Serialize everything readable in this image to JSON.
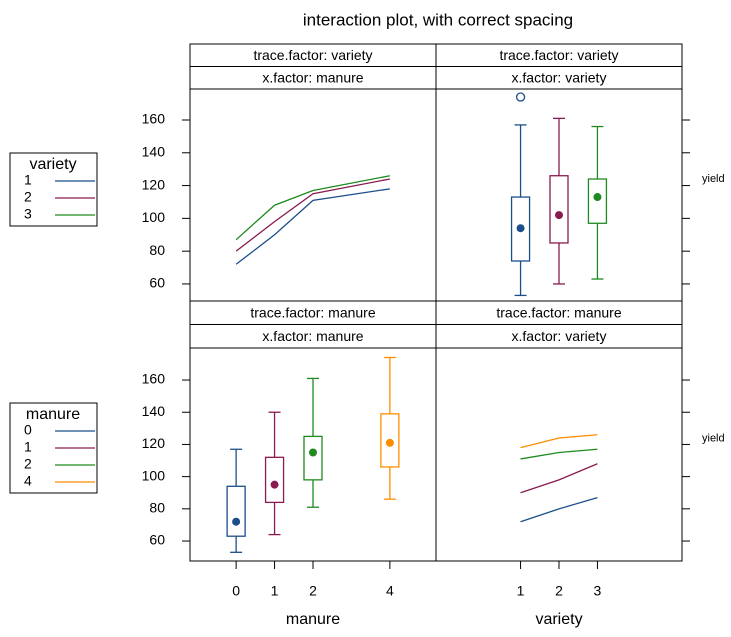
{
  "title": "interaction plot, with correct spacing",
  "chart_data": [
    {
      "type": "line",
      "strips": [
        "trace.factor: variety",
        "x.factor: manure"
      ],
      "legend_title": "variety",
      "x": [
        0,
        1,
        2,
        4
      ],
      "series": [
        {
          "name": "1",
          "color": "#1b4f8a",
          "values": [
            72,
            90,
            111,
            118
          ]
        },
        {
          "name": "2",
          "color": "#8a1a4f",
          "values": [
            80,
            98,
            115,
            124
          ]
        },
        {
          "name": "3",
          "color": "#1f8a1f",
          "values": [
            87,
            108,
            117,
            126
          ]
        }
      ],
      "xlim": [
        -1.2,
        5.2
      ],
      "ylim": [
        49.6,
        178.9
      ],
      "yticks": [
        60,
        80,
        100,
        120,
        140,
        160
      ]
    },
    {
      "type": "box",
      "strips": [
        "trace.factor: variety",
        "x.factor: variety"
      ],
      "y_label": "yield",
      "boxes": [
        {
          "x": 1,
          "color": "#1b4f8a",
          "min": 53,
          "q1": 74,
          "median": 94,
          "q3": 113,
          "max": 157,
          "outliers": [
            174
          ]
        },
        {
          "x": 2,
          "color": "#8a1a4f",
          "min": 60,
          "q1": 85,
          "median": 102,
          "q3": 126,
          "max": 161,
          "outliers": []
        },
        {
          "x": 3,
          "color": "#1f8a1f",
          "min": 63,
          "q1": 97,
          "median": 113,
          "q3": 124,
          "max": 156,
          "outliers": []
        }
      ],
      "xlim": [
        -1.2,
        5.2
      ],
      "ylim": [
        49.6,
        178.9
      ],
      "yticks": [
        60,
        80,
        100,
        120,
        140,
        160
      ]
    },
    {
      "type": "box",
      "strips": [
        "trace.factor: manure",
        "x.factor: manure"
      ],
      "x_label": "manure",
      "boxes": [
        {
          "x": 0,
          "color": "#1b4f8a",
          "min": 53,
          "q1": 63,
          "median": 72,
          "q3": 94,
          "max": 117,
          "outliers": []
        },
        {
          "x": 1,
          "color": "#8a1a4f",
          "min": 64,
          "q1": 84,
          "median": 95,
          "q3": 112,
          "max": 140,
          "outliers": []
        },
        {
          "x": 2,
          "color": "#1f8a1f",
          "min": 81,
          "q1": 98,
          "median": 115,
          "q3": 125,
          "max": 161,
          "outliers": []
        },
        {
          "x": 4,
          "color": "#ff8c00",
          "min": 86,
          "q1": 106,
          "median": 121,
          "q3": 139,
          "max": 174,
          "outliers": []
        }
      ],
      "xlim": [
        -1.2,
        5.2
      ],
      "xticks": [
        0,
        1,
        2,
        4
      ],
      "ylim": [
        47.6,
        179.9
      ],
      "yticks": [
        60,
        80,
        100,
        120,
        140,
        160
      ]
    },
    {
      "type": "line",
      "strips": [
        "trace.factor: manure",
        "x.factor: variety"
      ],
      "legend_title": "manure",
      "x_label": "variety",
      "y_label": "yield",
      "x": [
        1,
        2,
        3
      ],
      "series": [
        {
          "name": "0",
          "color": "#1b4f8a",
          "values": [
            72,
            80,
            87
          ]
        },
        {
          "name": "1",
          "color": "#8a1a4f",
          "values": [
            90,
            98,
            108
          ]
        },
        {
          "name": "2",
          "color": "#1f8a1f",
          "values": [
            111,
            115,
            117
          ]
        },
        {
          "name": "4",
          "color": "#ff8c00",
          "values": [
            118,
            124,
            126
          ]
        }
      ],
      "xlim": [
        -1.2,
        5.2
      ],
      "xticks": [
        1,
        2,
        3
      ],
      "ylim": [
        47.6,
        179.9
      ],
      "yticks": [
        60,
        80,
        100,
        120,
        140,
        160
      ]
    }
  ]
}
